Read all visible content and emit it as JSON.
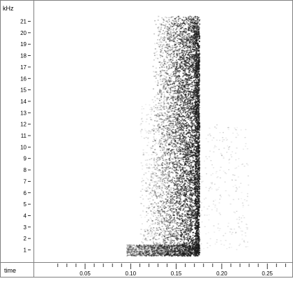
{
  "chart_data": {
    "type": "heatmap",
    "title": "",
    "ylabel": "kHz",
    "xlabel": "time",
    "ylim": [
      0,
      22
    ],
    "xlim": [
      0.0,
      0.28
    ],
    "y_ticks": [
      1,
      2,
      3,
      4,
      5,
      6,
      7,
      8,
      9,
      10,
      11,
      12,
      13,
      14,
      15,
      16,
      17,
      18,
      19,
      20,
      21
    ],
    "x_ticks": [
      "0.05",
      "0.10",
      "0.15",
      "0.20",
      "0.25"
    ],
    "x_tick_values": [
      0.05,
      0.1,
      0.15,
      0.2,
      0.25
    ],
    "x_minor_step": 0.01,
    "grid": false,
    "colors": {
      "ink": "#1a1a1a",
      "background": "#ffffff",
      "frame": "#808080"
    },
    "energy": {
      "onset_s": 0.135,
      "offset_s": 0.175,
      "peak_band_khz": [
        0.5,
        21
      ],
      "low_band_khz": [
        0.5,
        1.5
      ],
      "low_band_start_s": 0.095
    }
  }
}
